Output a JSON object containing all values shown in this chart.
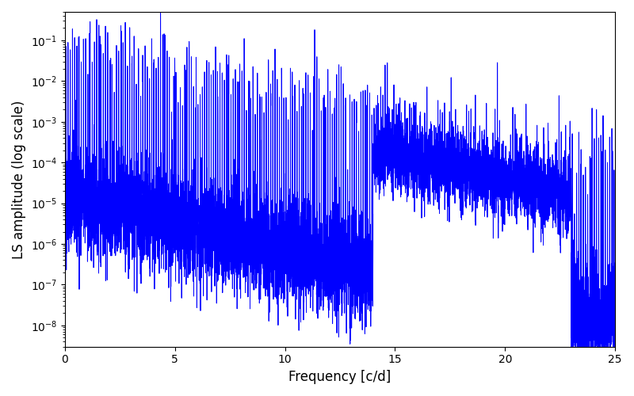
{
  "xlabel": "Frequency [c/d]",
  "ylabel": "LS amplitude (log scale)",
  "xlim": [
    0,
    25
  ],
  "ylim": [
    3e-09,
    0.5
  ],
  "xticks": [
    0,
    5,
    10,
    15,
    20,
    25
  ],
  "line_color": "blue",
  "line_width": 0.7,
  "background_color": "#ffffff",
  "figsize": [
    8.0,
    5.0
  ],
  "dpi": 100,
  "freq_max": 25.0,
  "seed": 42
}
